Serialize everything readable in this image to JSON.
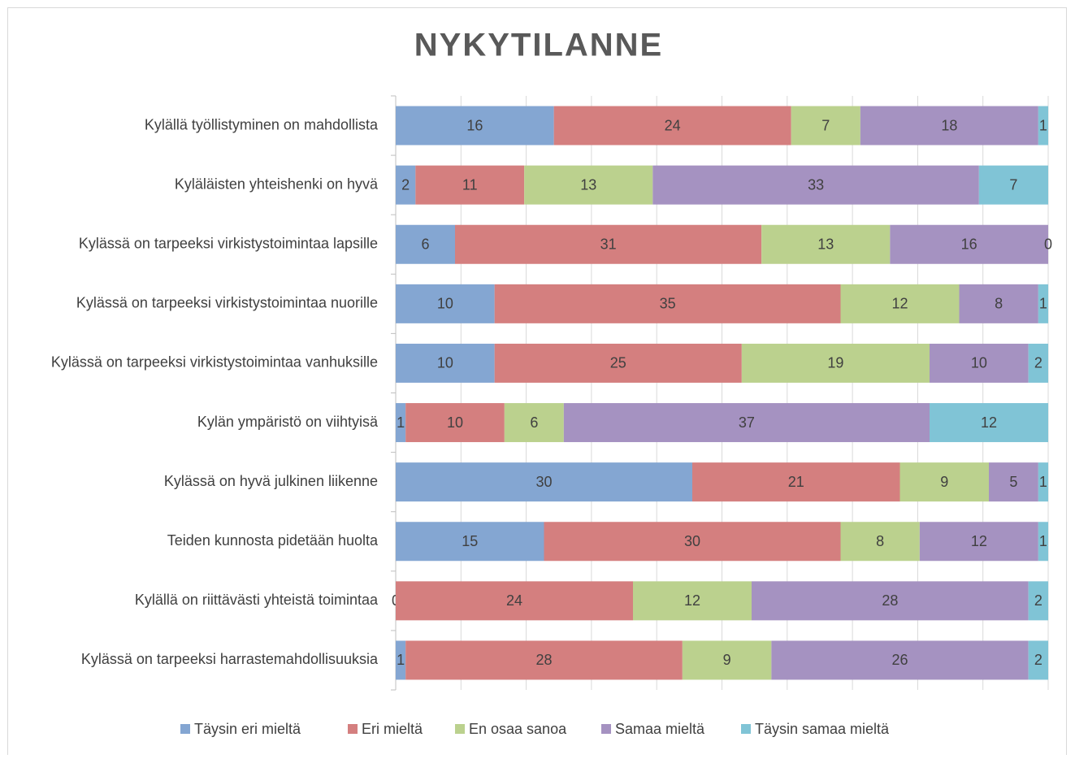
{
  "chart_data": {
    "type": "stacked_bar_horizontal_percent",
    "title": "NYKYTILANNE",
    "categories": [
      "Kylällä työllistyminen on mahdollista",
      "Kyläläisten yhteishenki on hyvä",
      "Kylässä on tarpeeksi virkistystoimintaa lapsille",
      "Kylässä on tarpeeksi virkistystoimintaa nuorille",
      "Kylässä on tarpeeksi virkistystoimintaa vanhuksille",
      "Kylän ympäristö on viihtyisä",
      "Kylässä on hyvä julkinen liikenne",
      "Teiden kunnosta pidetään huolta",
      "Kylällä on riittävästi yhteistä toimintaa",
      "Kylässä on tarpeeksi harrastemahdollisuuksia"
    ],
    "series": [
      {
        "name": "Täysin eri mieltä",
        "color": "#84a6d2",
        "values": [
          16,
          2,
          6,
          10,
          10,
          1,
          30,
          15,
          0,
          1
        ]
      },
      {
        "name": "Eri mieltä",
        "color": "#d47f7f",
        "values": [
          24,
          11,
          31,
          35,
          25,
          10,
          21,
          30,
          24,
          28
        ]
      },
      {
        "name": "En osaa sanoa",
        "color": "#bbd18e",
        "values": [
          7,
          13,
          13,
          12,
          19,
          6,
          9,
          8,
          12,
          9
        ]
      },
      {
        "name": "Samaa mieltä",
        "color": "#a592c1",
        "values": [
          18,
          33,
          16,
          8,
          10,
          37,
          5,
          12,
          28,
          26
        ]
      },
      {
        "name": "Täysin samaa mieltä",
        "color": "#80c4d6",
        "values": [
          1,
          7,
          0,
          1,
          2,
          12,
          1,
          1,
          2,
          2
        ]
      }
    ],
    "xlim": [
      0,
      100
    ],
    "xticks": [
      0,
      10,
      20,
      30,
      40,
      50,
      60,
      70,
      80,
      90,
      100
    ],
    "show_x_tick_labels": false,
    "grid": true,
    "legend": "bottom"
  }
}
